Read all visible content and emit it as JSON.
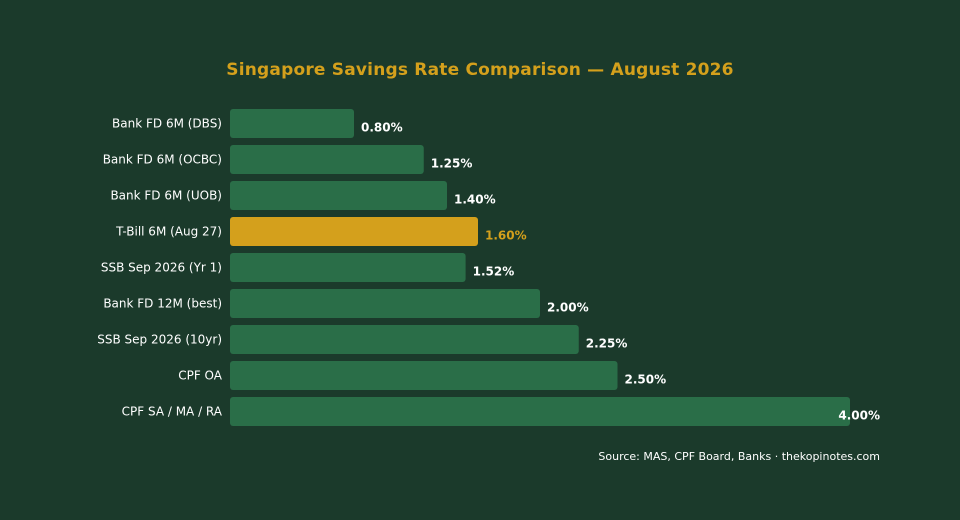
{
  "chart_data": {
    "type": "bar",
    "orientation": "horizontal",
    "title": "Singapore Savings Rate Comparison — August 2026",
    "categories": [
      "Bank FD 6M (DBS)",
      "Bank FD 6M (OCBC)",
      "Bank FD 6M (UOB)",
      "T-Bill 6M (Aug 27)",
      "SSB Sep 2026 (Yr 1)",
      "Bank FD 12M (best)",
      "SSB Sep 2026 (10yr)",
      "CPF OA",
      "CPF SA / MA / RA"
    ],
    "values": [
      0.8,
      1.25,
      1.4,
      1.6,
      1.52,
      2.0,
      2.25,
      2.5,
      4.0
    ],
    "value_labels": [
      "0.80%",
      "1.25%",
      "1.40%",
      "1.60%",
      "1.52%",
      "2.00%",
      "2.25%",
      "2.50%",
      "4.00%"
    ],
    "highlight_index": 3,
    "xlim": [
      0,
      4.0
    ],
    "grid": false,
    "colors": {
      "background": "#1b3a2b",
      "bar": "#2a6e48",
      "highlight_bar": "#d4a01c",
      "title": "#d4a01c",
      "label": "#ffffff",
      "highlight_label": "#d4a01c"
    }
  },
  "source": "Source: MAS, CPF Board, Banks · thekopinotes.com"
}
